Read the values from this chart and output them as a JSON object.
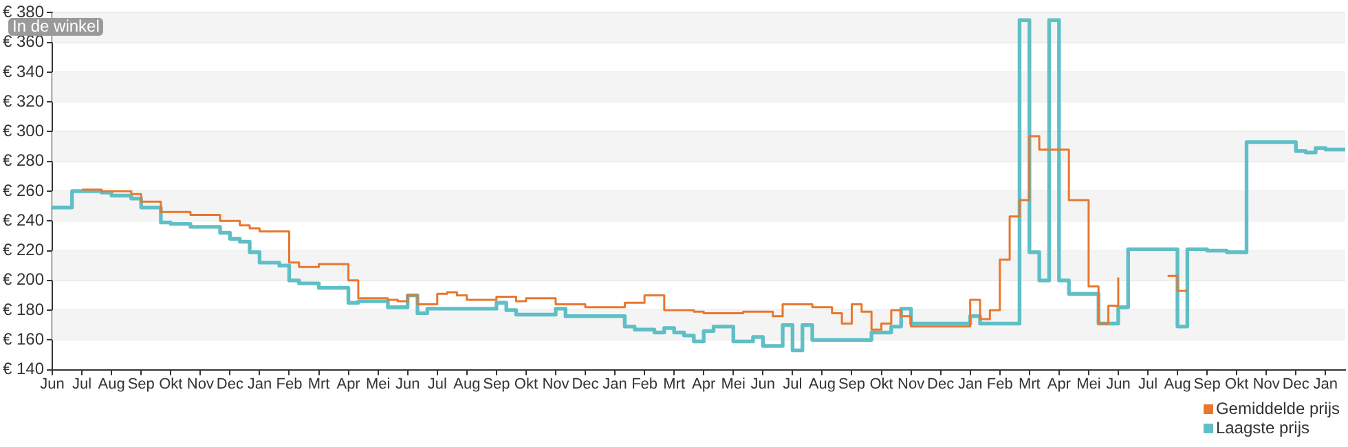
{
  "chart_data": {
    "type": "step",
    "annotations": [
      "In de winkel"
    ],
    "categories": [
      "Jun",
      null,
      null,
      "Jul",
      null,
      null,
      "Aug",
      null,
      null,
      "Sep",
      null,
      null,
      "Okt",
      null,
      null,
      "Nov",
      null,
      null,
      "Dec",
      null,
      null,
      "Jan",
      null,
      null,
      "Feb",
      null,
      null,
      "Mrt",
      null,
      null,
      "Apr",
      null,
      null,
      "Mei",
      null,
      null,
      "Jun",
      null,
      null,
      "Jul",
      null,
      null,
      "Aug",
      null,
      null,
      "Sep",
      null,
      null,
      "Okt",
      null,
      null,
      "Nov",
      null,
      null,
      "Dec",
      null,
      null,
      "Jan",
      null,
      null,
      "Feb",
      null,
      null,
      "Mrt",
      null,
      null,
      "Apr",
      null,
      null,
      "Mei",
      null,
      null,
      "Jun",
      null,
      null,
      "Jul",
      null,
      null,
      "Aug",
      null,
      null,
      "Sep",
      null,
      null,
      "Okt",
      null,
      null,
      "Nov",
      null,
      null,
      "Dec",
      null,
      null,
      "Jan",
      null,
      null,
      "Feb",
      null,
      null,
      "Mrt",
      null,
      null,
      "Apr",
      null,
      null,
      "Mei",
      null,
      null,
      "Jun",
      null,
      null,
      "Jul",
      null,
      null,
      "Aug",
      null,
      null,
      "Sep",
      null,
      null,
      "Okt",
      null,
      null,
      "Nov",
      null,
      null,
      "Dec",
      null,
      null,
      "Jan",
      null,
      null
    ],
    "ylim": [
      140,
      380
    ],
    "yticks": [
      {
        "value": 140,
        "label": "€ 140"
      },
      {
        "value": 160,
        "label": "€ 160"
      },
      {
        "value": 180,
        "label": "€ 180"
      },
      {
        "value": 200,
        "label": "€ 200"
      },
      {
        "value": 220,
        "label": "€ 220"
      },
      {
        "value": 240,
        "label": "€ 240"
      },
      {
        "value": 260,
        "label": "€ 260"
      },
      {
        "value": 280,
        "label": "€ 280"
      },
      {
        "value": 300,
        "label": "€ 300"
      },
      {
        "value": 320,
        "label": "€ 320"
      },
      {
        "value": 340,
        "label": "€ 340"
      },
      {
        "value": 360,
        "label": "€ 360"
      },
      {
        "value": 380,
        "label": "€ 380"
      }
    ],
    "grid": "y",
    "legend": "bottom right",
    "marker": "none",
    "line_style": "solid",
    "series": [
      {
        "name": "Gemiddelde prijs",
        "color": "#e8772e",
        "values": [
          null,
          null,
          null,
          261,
          261,
          260,
          260,
          260,
          258,
          253,
          253,
          246,
          246,
          246,
          244,
          244,
          244,
          240,
          240,
          237,
          235,
          233,
          233,
          233,
          212,
          209,
          209,
          211,
          211,
          211,
          200,
          188,
          188,
          188,
          187,
          186,
          190,
          184,
          184,
          191,
          192,
          190,
          187,
          187,
          187,
          189,
          189,
          186,
          188,
          188,
          188,
          184,
          184,
          184,
          182,
          182,
          182,
          182,
          185,
          185,
          190,
          190,
          180,
          180,
          180,
          179,
          178,
          178,
          178,
          178,
          179,
          179,
          179,
          176,
          184,
          184,
          184,
          182,
          182,
          178,
          171,
          184,
          179,
          167,
          171,
          180,
          176,
          169,
          169,
          169,
          169,
          169,
          169,
          187,
          174,
          180,
          214,
          243,
          254,
          297,
          288,
          288,
          288,
          254,
          254,
          196,
          171,
          183,
          202,
          null,
          null,
          null,
          null,
          203,
          193,
          193,
          null,
          null,
          null,
          null,
          null,
          null,
          null,
          null,
          null,
          null,
          null,
          null,
          null,
          null,
          null,
          null
        ]
      },
      {
        "name": "Laagste prijs",
        "color": "#5fbfc6",
        "values": [
          249,
          249,
          260,
          260,
          260,
          259,
          257,
          257,
          255,
          249,
          249,
          239,
          238,
          238,
          236,
          236,
          236,
          232,
          228,
          226,
          219,
          212,
          212,
          210,
          200,
          198,
          198,
          195,
          195,
          195,
          185,
          186,
          186,
          186,
          182,
          182,
          190,
          178,
          181,
          181,
          181,
          181,
          181,
          181,
          181,
          185,
          180,
          177,
          177,
          177,
          177,
          181,
          176,
          176,
          176,
          176,
          176,
          176,
          169,
          167,
          167,
          165,
          168,
          165,
          163,
          159,
          166,
          169,
          169,
          159,
          159,
          162,
          156,
          156,
          170,
          153,
          170,
          160,
          160,
          160,
          160,
          160,
          160,
          165,
          165,
          169,
          181,
          171,
          171,
          171,
          171,
          171,
          171,
          176,
          171,
          171,
          171,
          171,
          375,
          219,
          200,
          375,
          200,
          191,
          191,
          191,
          171,
          171,
          182,
          221,
          221,
          221,
          221,
          221,
          169,
          221,
          221,
          220,
          220,
          219,
          219,
          293,
          293,
          293,
          293,
          293,
          287,
          286,
          289,
          288,
          288,
          288
        ]
      }
    ]
  }
}
